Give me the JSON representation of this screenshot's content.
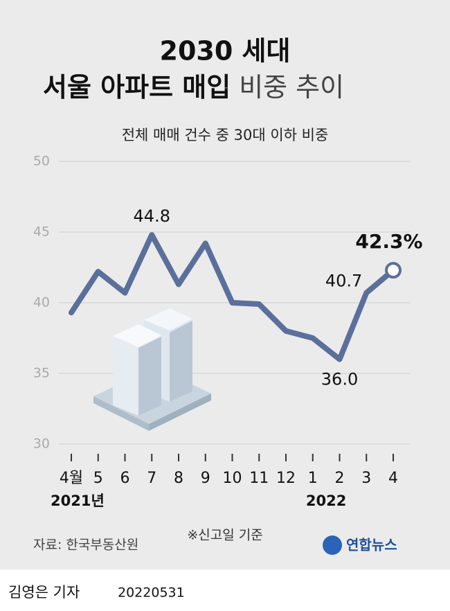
{
  "chart_data": {
    "type": "line",
    "title": [
      "2030 세대",
      "서울 아파트 매입",
      "비중 추이"
    ],
    "subtitle": "전체 매매 건수 중 30대 이하 비중",
    "categories": [
      "4월",
      "5",
      "6",
      "7",
      "8",
      "9",
      "10",
      "11",
      "12",
      "1",
      "2",
      "3",
      "4"
    ],
    "year_labels": [
      "2021년",
      "2022"
    ],
    "values": [
      39.3,
      42.2,
      40.7,
      44.8,
      41.3,
      44.2,
      40.0,
      39.9,
      38.0,
      37.5,
      36.0,
      40.7,
      42.3
    ],
    "value_labels": [
      null,
      null,
      null,
      "44.8",
      null,
      null,
      null,
      null,
      null,
      null,
      "36.0",
      "40.7",
      "42.3%"
    ],
    "color": "#5b6f9b",
    "ylim": [
      30,
      50
    ],
    "yticks": [
      30,
      35,
      40,
      45,
      50
    ],
    "grid": true,
    "source": "자료: 한국부동산원",
    "note": "※신고일 기준",
    "logo": "연합뉴스",
    "author": "김영은 기자",
    "date": "20220531"
  }
}
